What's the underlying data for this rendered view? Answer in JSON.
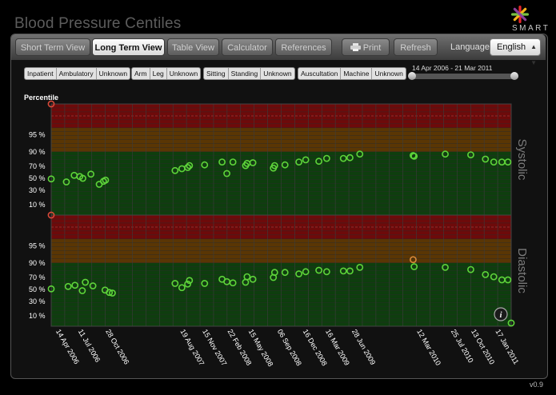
{
  "app": {
    "title": "Blood Pressure Centiles",
    "brand": "SMART",
    "version": "v0.9"
  },
  "tabs": [
    {
      "label": "Short Term View",
      "active": false
    },
    {
      "label": "Long Term View",
      "active": true
    },
    {
      "label": "Table View",
      "active": false
    },
    {
      "label": "Calculator",
      "active": false
    },
    {
      "label": "References",
      "active": false
    }
  ],
  "toolbar": {
    "print_label": "Print",
    "refresh_label": "Refresh",
    "language_label": "Language:",
    "language_value": "English"
  },
  "filters": [
    {
      "items": [
        "Inpatient",
        "Ambulatory",
        "Unknown"
      ]
    },
    {
      "items": [
        "Arm",
        "Leg",
        "Unknown"
      ]
    },
    {
      "items": [
        "Sitting",
        "Standing",
        "Unknown"
      ]
    },
    {
      "items": [
        "Auscultation",
        "Machine",
        "Unknown"
      ]
    }
  ],
  "date_range": {
    "label": "14 Apr 2006 - 21 Mar 2011"
  },
  "chart_data": {
    "type": "scatter",
    "y_axis_title": "Percentile",
    "y_ticks": [
      "95 %",
      "90 %",
      "70 %",
      "50 %",
      "30 %",
      "10 %"
    ],
    "y_tick_values": [
      95,
      90,
      70,
      50,
      30,
      10
    ],
    "bands": [
      {
        "name": "red",
        "from": 97,
        "to": 100,
        "color": "#6e0a0a"
      },
      {
        "name": "orange",
        "from": 90,
        "to": 97,
        "color": "#5a3604"
      },
      {
        "name": "green",
        "from": 0,
        "to": 90,
        "color": "#0e3e0e"
      }
    ],
    "x_range": [
      "2006-03-27",
      "2011-03-21"
    ],
    "x_tick_labels": [
      {
        "date": "2006-04-14",
        "label": "14 Apr 2006"
      },
      {
        "date": "2006-07-11",
        "label": "11 Jul 2006"
      },
      {
        "date": "2006-10-28",
        "label": "28 Oct 2006"
      },
      {
        "date": "2007-08-19",
        "label": "19 Aug 2007"
      },
      {
        "date": "2007-11-15",
        "label": "15 Nov 2007"
      },
      {
        "date": "2008-02-22",
        "label": "22 Feb 2008"
      },
      {
        "date": "2008-05-15",
        "label": "15 May 2008"
      },
      {
        "date": "2008-09-06",
        "label": "06 Sep 2008"
      },
      {
        "date": "2008-12-16",
        "label": "16 Dec 2008"
      },
      {
        "date": "2009-03-16",
        "label": "16 Mar 2009"
      },
      {
        "date": "2009-06-28",
        "label": "28 Jun 2009"
      },
      {
        "date": "2010-03-12",
        "label": "12 Mar 2010"
      },
      {
        "date": "2010-07-25",
        "label": "25 Jul 2010"
      },
      {
        "date": "2010-10-13",
        "label": "13 Oct 2010"
      },
      {
        "date": "2011-01-17",
        "label": "17 Jan 2011"
      }
    ],
    "panels": [
      {
        "name": "Systolic",
        "points": [
          {
            "date": "2006-03-27",
            "value": 100,
            "color": "#d94a3a"
          },
          {
            "date": "2006-03-27",
            "value": 49,
            "color": "#5ed43a"
          },
          {
            "date": "2006-05-26",
            "value": 44,
            "color": "#5ed43a"
          },
          {
            "date": "2006-06-26",
            "value": 55,
            "color": "#5ed43a"
          },
          {
            "date": "2006-07-18",
            "value": 53,
            "color": "#5ed43a"
          },
          {
            "date": "2006-07-30",
            "value": 50,
            "color": "#5ed43a"
          },
          {
            "date": "2006-08-31",
            "value": 57,
            "color": "#5ed43a"
          },
          {
            "date": "2006-10-03",
            "value": 40,
            "color": "#5ed43a"
          },
          {
            "date": "2006-10-20",
            "value": 45,
            "color": "#5ed43a"
          },
          {
            "date": "2006-10-28",
            "value": 47,
            "color": "#5ed43a"
          },
          {
            "date": "2007-07-30",
            "value": 63,
            "color": "#5ed43a"
          },
          {
            "date": "2007-08-26",
            "value": 66,
            "color": "#5ed43a"
          },
          {
            "date": "2007-09-18",
            "value": 68,
            "color": "#5ed43a"
          },
          {
            "date": "2007-09-25",
            "value": 71,
            "color": "#5ed43a"
          },
          {
            "date": "2007-11-24",
            "value": 72,
            "color": "#5ed43a"
          },
          {
            "date": "2008-02-01",
            "value": 76,
            "color": "#5ed43a"
          },
          {
            "date": "2008-02-20",
            "value": 58,
            "color": "#5ed43a"
          },
          {
            "date": "2008-03-15",
            "value": 76,
            "color": "#5ed43a"
          },
          {
            "date": "2008-05-04",
            "value": 71,
            "color": "#5ed43a"
          },
          {
            "date": "2008-05-10",
            "value": 74,
            "color": "#5ed43a"
          },
          {
            "date": "2008-06-02",
            "value": 75,
            "color": "#5ed43a"
          },
          {
            "date": "2008-08-22",
            "value": 67,
            "color": "#5ed43a"
          },
          {
            "date": "2008-08-27",
            "value": 71,
            "color": "#5ed43a"
          },
          {
            "date": "2008-10-07",
            "value": 72,
            "color": "#5ed43a"
          },
          {
            "date": "2008-12-01",
            "value": 76,
            "color": "#5ed43a"
          },
          {
            "date": "2008-12-28",
            "value": 79,
            "color": "#5ed43a"
          },
          {
            "date": "2009-02-18",
            "value": 77,
            "color": "#5ed43a"
          },
          {
            "date": "2009-03-21",
            "value": 81,
            "color": "#5ed43a"
          },
          {
            "date": "2009-05-26",
            "value": 81,
            "color": "#5ed43a"
          },
          {
            "date": "2009-06-21",
            "value": 82,
            "color": "#5ed43a"
          },
          {
            "date": "2009-07-30",
            "value": 87,
            "color": "#5ed43a"
          },
          {
            "date": "2010-02-26",
            "value": 85,
            "color": "#5ed43a"
          },
          {
            "date": "2010-03-02",
            "value": 84,
            "color": "#5ed43a"
          },
          {
            "date": "2010-07-03",
            "value": 87,
            "color": "#5ed43a"
          },
          {
            "date": "2010-10-12",
            "value": 86,
            "color": "#5ed43a"
          },
          {
            "date": "2010-12-09",
            "value": 80,
            "color": "#5ed43a"
          },
          {
            "date": "2011-01-11",
            "value": 76,
            "color": "#5ed43a"
          },
          {
            "date": "2011-02-12",
            "value": 76,
            "color": "#5ed43a"
          },
          {
            "date": "2011-03-08",
            "value": 76,
            "color": "#5ed43a"
          }
        ]
      },
      {
        "name": "Diastolic",
        "points": [
          {
            "date": "2006-03-27",
            "value": 100,
            "color": "#d94a3a"
          },
          {
            "date": "2006-03-27",
            "value": 51,
            "color": "#5ed43a"
          },
          {
            "date": "2006-06-02",
            "value": 55,
            "color": "#5ed43a"
          },
          {
            "date": "2006-06-29",
            "value": 57,
            "color": "#5ed43a"
          },
          {
            "date": "2006-07-28",
            "value": 48,
            "color": "#5ed43a"
          },
          {
            "date": "2006-08-09",
            "value": 62,
            "color": "#5ed43a"
          },
          {
            "date": "2006-09-08",
            "value": 56,
            "color": "#5ed43a"
          },
          {
            "date": "2006-10-26",
            "value": 49,
            "color": "#5ed43a"
          },
          {
            "date": "2006-11-12",
            "value": 45,
            "color": "#5ed43a"
          },
          {
            "date": "2006-11-24",
            "value": 44,
            "color": "#5ed43a"
          },
          {
            "date": "2007-07-30",
            "value": 60,
            "color": "#5ed43a"
          },
          {
            "date": "2007-08-26",
            "value": 53,
            "color": "#5ed43a"
          },
          {
            "date": "2007-09-18",
            "value": 59,
            "color": "#5ed43a"
          },
          {
            "date": "2007-09-25",
            "value": 65,
            "color": "#5ed43a"
          },
          {
            "date": "2007-11-24",
            "value": 60,
            "color": "#5ed43a"
          },
          {
            "date": "2008-02-01",
            "value": 67,
            "color": "#5ed43a"
          },
          {
            "date": "2008-02-20",
            "value": 63,
            "color": "#5ed43a"
          },
          {
            "date": "2008-03-15",
            "value": 61,
            "color": "#5ed43a"
          },
          {
            "date": "2008-05-04",
            "value": 62,
            "color": "#5ed43a"
          },
          {
            "date": "2008-05-10",
            "value": 71,
            "color": "#5ed43a"
          },
          {
            "date": "2008-06-02",
            "value": 67,
            "color": "#5ed43a"
          },
          {
            "date": "2008-08-22",
            "value": 70,
            "color": "#5ed43a"
          },
          {
            "date": "2008-08-27",
            "value": 77,
            "color": "#5ed43a"
          },
          {
            "date": "2008-10-07",
            "value": 77,
            "color": "#5ed43a"
          },
          {
            "date": "2008-12-01",
            "value": 75,
            "color": "#5ed43a"
          },
          {
            "date": "2008-12-28",
            "value": 78,
            "color": "#5ed43a"
          },
          {
            "date": "2009-02-18",
            "value": 80,
            "color": "#5ed43a"
          },
          {
            "date": "2009-03-21",
            "value": 78,
            "color": "#5ed43a"
          },
          {
            "date": "2009-05-26",
            "value": 79,
            "color": "#5ed43a"
          },
          {
            "date": "2009-06-21",
            "value": 79,
            "color": "#5ed43a"
          },
          {
            "date": "2009-07-30",
            "value": 84,
            "color": "#5ed43a"
          },
          {
            "date": "2010-02-26",
            "value": 91,
            "color": "#d98a3a"
          },
          {
            "date": "2010-03-02",
            "value": 85,
            "color": "#5ed43a"
          },
          {
            "date": "2010-07-03",
            "value": 84,
            "color": "#5ed43a"
          },
          {
            "date": "2010-10-12",
            "value": 81,
            "color": "#5ed43a"
          },
          {
            "date": "2010-12-09",
            "value": 74,
            "color": "#5ed43a"
          },
          {
            "date": "2011-01-11",
            "value": 71,
            "color": "#5ed43a"
          },
          {
            "date": "2011-02-12",
            "value": 66,
            "color": "#5ed43a"
          },
          {
            "date": "2011-03-08",
            "value": 66,
            "color": "#5ed43a"
          },
          {
            "date": "2011-03-21",
            "value": 0,
            "color": "#5ed43a"
          }
        ]
      }
    ]
  }
}
